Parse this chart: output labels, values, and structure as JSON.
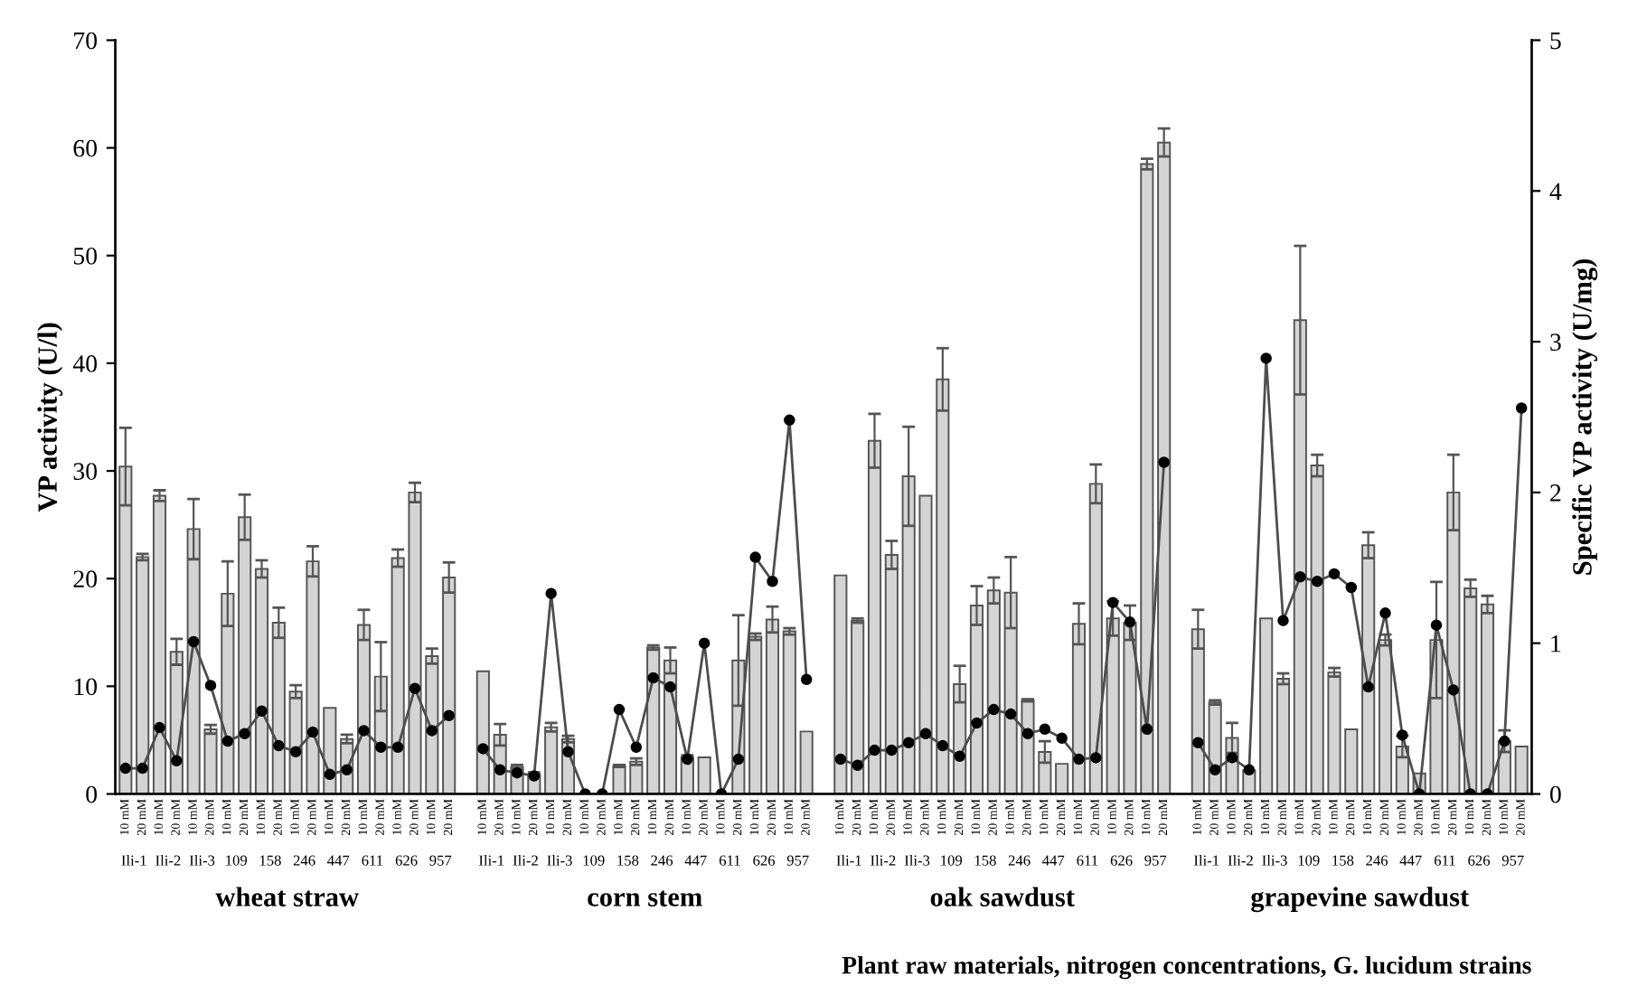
{
  "chart_data": {
    "type": "bar",
    "xlabel": "Plant raw materials, nitrogen concentrations, G. lucidum strains",
    "ylabel": "VP activity (U/l)",
    "y2label": "Specific VP activity (U/mg)",
    "categories": [
      "10 mM",
      "20 mM",
      "10 mM",
      "20 mM",
      "10 mM",
      "20 mM",
      "10 mM",
      "20 mM",
      "10 mM",
      "20 mM",
      "10 mM",
      "20 mM",
      "10 mM",
      "20 mM",
      "10 mM",
      "20 mM",
      "10 mM",
      "20 mM",
      "10 mM",
      "20 mM",
      null,
      "10 mM",
      "20 mM",
      "10 mM",
      "20 mM",
      "10 mM",
      "20 mM",
      "10 mM",
      "20 mM",
      "10 mM",
      "20 mM",
      "10 mM",
      "20 mM",
      "10 mM",
      "20 mM",
      "10 mM",
      "20 mM",
      "10 mM",
      "20 mM",
      "10 mM",
      "20 mM",
      null,
      "10 mM",
      "20 mM",
      "10 mM",
      "20 mM",
      "10 mM",
      "20 mM",
      "10 mM",
      "20 mM",
      "10 mM",
      "20 mM",
      "10 mM",
      "20 mM",
      "10 mM",
      "20 mM",
      "10 mM",
      "20 mM",
      "10 mM",
      "20 mM",
      "10 mM",
      "20 mM",
      null,
      "10 mM",
      "20 mM",
      "10 mM",
      "20 mM",
      "10 mM",
      "20 mM",
      "10 mM",
      "20 mM",
      "10 mM",
      "20 mM",
      "10 mM",
      "20 mM",
      "10 mM",
      "20 mM",
      "10 mM",
      "20 mM",
      "10 mM",
      "20 mM",
      "10 mM",
      "20 mM"
    ],
    "series": [
      {
        "color": "#d4d4d4",
        "values": [
          30.4,
          22.0,
          27.7,
          13.2,
          24.6,
          6.0,
          18.6,
          25.7,
          20.9,
          15.9,
          9.5,
          21.6,
          8.0,
          5.1,
          15.7,
          10.9,
          21.9,
          28.0,
          12.8,
          20.1,
          null,
          11.4,
          5.5,
          2.5,
          1.8,
          6.2,
          5.1,
          0,
          0,
          2.6,
          3.0,
          13.6,
          12.4,
          3.4,
          3.4,
          0,
          12.4,
          14.6,
          16.2,
          15.1,
          5.8,
          null,
          20.3,
          16.1,
          32.8,
          22.2,
          29.5,
          27.7,
          38.5,
          10.2,
          17.5,
          18.9,
          18.7,
          8.7,
          3.9,
          2.8,
          15.8,
          28.8,
          16.3,
          15.9,
          58.5,
          60.5,
          null,
          15.3,
          8.5,
          5.2,
          2.2,
          16.3,
          10.7,
          44.0,
          30.5,
          11.3,
          6.0,
          23.1,
          14.3,
          4.4,
          1.9,
          14.3,
          28.0,
          19.1,
          17.6,
          4.9,
          4.4
        ],
        "errors": [
          3.6,
          0.3,
          0.5,
          1.2,
          2.8,
          0.4,
          3.0,
          2.1,
          0.8,
          1.4,
          0.6,
          1.4,
          null,
          0.4,
          1.4,
          3.2,
          0.8,
          0.9,
          0.7,
          1.4,
          null,
          null,
          1.0,
          0.2,
          0.2,
          0.4,
          0.3,
          null,
          null,
          0.1,
          0.3,
          0.2,
          1.2,
          0.2,
          null,
          null,
          4.2,
          0.3,
          1.2,
          0.3,
          null,
          null,
          null,
          0.2,
          2.5,
          1.3,
          4.6,
          null,
          2.9,
          1.7,
          1.8,
          1.2,
          3.3,
          0.1,
          1.0,
          null,
          1.9,
          1.8,
          1.6,
          1.6,
          0.5,
          1.3,
          null,
          1.8,
          0.2,
          1.4,
          null,
          null,
          0.5,
          6.9,
          1.0,
          0.4,
          null,
          1.2,
          0.5,
          1.0,
          null,
          5.4,
          3.5,
          0.8,
          0.8,
          1.0,
          null
        ]
      },
      {
        "type": "line",
        "axis": "y2",
        "color": "#4d4d4d",
        "values": [
          0.17,
          0.17,
          0.44,
          0.22,
          1.01,
          0.72,
          0.35,
          0.4,
          0.55,
          0.32,
          0.28,
          0.41,
          0.13,
          0.16,
          0.42,
          0.31,
          0.31,
          0.7,
          0.42,
          0.52,
          null,
          0.3,
          0.16,
          0.14,
          0.12,
          1.33,
          0.28,
          0,
          0,
          0.56,
          0.31,
          0.77,
          0.71,
          0.23,
          1.0,
          0,
          0.23,
          1.57,
          1.41,
          2.48,
          0.76,
          null,
          0.23,
          0.19,
          0.29,
          0.29,
          0.34,
          0.4,
          0.32,
          0.25,
          0.47,
          0.56,
          0.53,
          0.4,
          0.43,
          0.37,
          0.23,
          0.24,
          1.27,
          1.14,
          0.43,
          2.2,
          null,
          0.34,
          0.16,
          0.24,
          0.16,
          2.89,
          1.15,
          1.44,
          1.41,
          1.46,
          1.37,
          0.71,
          1.2,
          0.39,
          0,
          1.12,
          0.69,
          0,
          0,
          0.35,
          2.56
        ]
      }
    ],
    "ylim": [
      0,
      70
    ],
    "yticks": [
      0,
      10,
      20,
      30,
      40,
      50,
      60,
      70
    ],
    "y2lim": [
      0,
      5
    ],
    "y2ticks": [
      0,
      1,
      2,
      3,
      4,
      5
    ],
    "marker": "circle",
    "line_style": "solid",
    "grid": false,
    "legend": false,
    "annotations": [
      "Ili-1",
      "Ili-2",
      "Ili-3",
      "109",
      "158",
      "246",
      "447",
      "611",
      "626",
      "957",
      "Ili-1",
      "Ili-2",
      "Ili-3",
      "109",
      "158",
      "246",
      "447",
      "611",
      "626",
      "957",
      "Ili-1",
      "Ili-2",
      "Ili-3",
      "109",
      "158",
      "246",
      "447",
      "611",
      "626",
      "957",
      "Ili-1",
      "Ili-2",
      "Ili-3",
      "109",
      "158",
      "246",
      "447",
      "611",
      "626",
      "957",
      "wheat straw",
      "corn stem",
      "oak sawdust",
      "grapevine sawdust"
    ]
  }
}
